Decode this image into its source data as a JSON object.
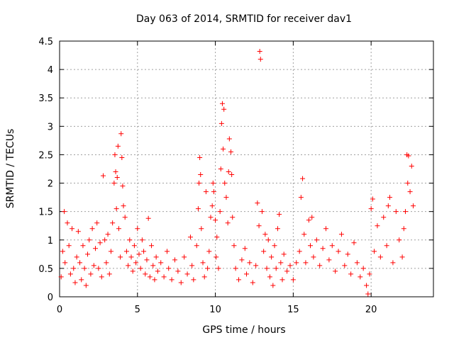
{
  "chart_data": {
    "type": "scatter",
    "title": "Day 063 of 2014, SRMTID for receiver dav1",
    "xlabel": "GPS time / hours",
    "ylabel": "SRMTID / TECUs",
    "xlim": [
      0,
      24
    ],
    "ylim": [
      0,
      4.5
    ],
    "x_ticks": [
      0,
      5,
      10,
      15,
      20
    ],
    "y_ticks": [
      0,
      0.5,
      1,
      1.5,
      2,
      2.5,
      3,
      3.5,
      4,
      4.5
    ],
    "x_tick_labels": [
      "0",
      "5",
      "10",
      "15",
      "20"
    ],
    "y_tick_labels": [
      "0",
      "0.5",
      "1",
      "1.5",
      "2",
      "2.5",
      "3",
      "3.5",
      "4",
      "4.5"
    ],
    "grid": true,
    "marker": "+",
    "color": "#ff0000",
    "series": [
      {
        "name": "SRMTID",
        "points": [
          [
            0.1,
            0.35
          ],
          [
            0.2,
            0.8
          ],
          [
            0.3,
            1.5
          ],
          [
            0.35,
            0.6
          ],
          [
            0.5,
            1.3
          ],
          [
            0.6,
            0.9
          ],
          [
            0.7,
            0.4
          ],
          [
            0.8,
            1.2
          ],
          [
            0.9,
            0.5
          ],
          [
            1.0,
            0.25
          ],
          [
            1.1,
            0.7
          ],
          [
            1.2,
            1.15
          ],
          [
            1.3,
            0.6
          ],
          [
            1.4,
            0.3
          ],
          [
            1.5,
            0.9
          ],
          [
            1.6,
            0.5
          ],
          [
            1.7,
            0.2
          ],
          [
            1.8,
            0.75
          ],
          [
            1.9,
            1.0
          ],
          [
            2.0,
            0.4
          ],
          [
            2.1,
            1.2
          ],
          [
            2.2,
            0.55
          ],
          [
            2.3,
            0.85
          ],
          [
            2.4,
            1.3
          ],
          [
            2.5,
            0.5
          ],
          [
            2.6,
            0.95
          ],
          [
            2.7,
            0.35
          ],
          [
            2.8,
            2.13
          ],
          [
            2.9,
            1.0
          ],
          [
            3.0,
            0.6
          ],
          [
            3.1,
            1.1
          ],
          [
            3.2,
            0.4
          ],
          [
            3.3,
            0.8
          ],
          [
            3.4,
            1.3
          ],
          [
            3.5,
            2.0
          ],
          [
            3.55,
            2.5
          ],
          [
            3.6,
            2.2
          ],
          [
            3.65,
            1.55
          ],
          [
            3.7,
            2.1
          ],
          [
            3.75,
            2.65
          ],
          [
            3.8,
            1.2
          ],
          [
            3.9,
            0.7
          ],
          [
            3.95,
            2.87
          ],
          [
            4.0,
            2.45
          ],
          [
            4.05,
            1.95
          ],
          [
            4.1,
            1.6
          ],
          [
            4.2,
            1.4
          ],
          [
            4.3,
            0.8
          ],
          [
            4.4,
            0.55
          ],
          [
            4.5,
            1.0
          ],
          [
            4.6,
            0.7
          ],
          [
            4.7,
            0.45
          ],
          [
            4.8,
            0.9
          ],
          [
            4.9,
            0.6
          ],
          [
            5.0,
            1.2
          ],
          [
            5.1,
            0.75
          ],
          [
            5.2,
            0.5
          ],
          [
            5.3,
            1.0
          ],
          [
            5.4,
            0.8
          ],
          [
            5.5,
            0.4
          ],
          [
            5.6,
            0.65
          ],
          [
            5.7,
            1.38
          ],
          [
            5.8,
            0.35
          ],
          [
            5.9,
            0.9
          ],
          [
            6.0,
            0.55
          ],
          [
            6.1,
            0.3
          ],
          [
            6.2,
            0.7
          ],
          [
            6.3,
            0.45
          ],
          [
            6.5,
            0.6
          ],
          [
            6.7,
            0.35
          ],
          [
            6.9,
            0.8
          ],
          [
            7.0,
            0.5
          ],
          [
            7.2,
            0.3
          ],
          [
            7.4,
            0.65
          ],
          [
            7.6,
            0.45
          ],
          [
            7.8,
            0.25
          ],
          [
            8.0,
            0.7
          ],
          [
            8.2,
            0.4
          ],
          [
            8.4,
            1.05
          ],
          [
            8.5,
            0.55
          ],
          [
            8.6,
            0.3
          ],
          [
            8.8,
            0.9
          ],
          [
            8.9,
            1.55
          ],
          [
            8.95,
            2.0
          ],
          [
            9.0,
            2.45
          ],
          [
            9.05,
            2.15
          ],
          [
            9.1,
            1.2
          ],
          [
            9.2,
            0.6
          ],
          [
            9.3,
            0.35
          ],
          [
            9.4,
            1.85
          ],
          [
            9.5,
            0.5
          ],
          [
            9.6,
            0.8
          ],
          [
            9.7,
            1.4
          ],
          [
            9.8,
            1.6
          ],
          [
            9.85,
            2.0
          ],
          [
            9.9,
            1.85
          ],
          [
            10.0,
            1.35
          ],
          [
            10.05,
            0.7
          ],
          [
            10.1,
            1.05
          ],
          [
            10.2,
            0.5
          ],
          [
            10.3,
            1.5
          ],
          [
            10.35,
            2.25
          ],
          [
            10.4,
            3.05
          ],
          [
            10.45,
            3.4
          ],
          [
            10.5,
            2.6
          ],
          [
            10.55,
            3.3
          ],
          [
            10.6,
            2.0
          ],
          [
            10.7,
            1.75
          ],
          [
            10.8,
            1.3
          ],
          [
            10.85,
            2.2
          ],
          [
            10.9,
            2.78
          ],
          [
            11.0,
            2.55
          ],
          [
            11.05,
            2.15
          ],
          [
            11.1,
            1.4
          ],
          [
            11.2,
            0.9
          ],
          [
            11.3,
            0.5
          ],
          [
            11.5,
            0.3
          ],
          [
            11.7,
            0.65
          ],
          [
            11.9,
            0.85
          ],
          [
            12.0,
            0.4
          ],
          [
            12.2,
            0.6
          ],
          [
            12.4,
            0.25
          ],
          [
            12.6,
            0.55
          ],
          [
            12.7,
            1.65
          ],
          [
            12.8,
            1.25
          ],
          [
            12.85,
            4.32
          ],
          [
            12.9,
            4.18
          ],
          [
            13.0,
            1.5
          ],
          [
            13.1,
            0.8
          ],
          [
            13.2,
            1.1
          ],
          [
            13.3,
            0.5
          ],
          [
            13.4,
            1.0
          ],
          [
            13.5,
            0.35
          ],
          [
            13.6,
            0.7
          ],
          [
            13.7,
            0.2
          ],
          [
            13.8,
            0.9
          ],
          [
            13.9,
            0.5
          ],
          [
            14.0,
            1.2
          ],
          [
            14.1,
            1.45
          ],
          [
            14.2,
            0.6
          ],
          [
            14.3,
            0.3
          ],
          [
            14.4,
            0.75
          ],
          [
            14.6,
            0.45
          ],
          [
            14.8,
            0.55
          ],
          [
            15.0,
            0.3
          ],
          [
            15.2,
            0.6
          ],
          [
            15.4,
            0.8
          ],
          [
            15.5,
            1.75
          ],
          [
            15.6,
            2.08
          ],
          [
            15.7,
            1.1
          ],
          [
            15.8,
            0.6
          ],
          [
            16.0,
            1.35
          ],
          [
            16.1,
            0.9
          ],
          [
            16.2,
            1.4
          ],
          [
            16.3,
            0.7
          ],
          [
            16.5,
            1.0
          ],
          [
            16.7,
            0.55
          ],
          [
            16.9,
            0.85
          ],
          [
            17.1,
            1.2
          ],
          [
            17.3,
            0.65
          ],
          [
            17.5,
            0.9
          ],
          [
            17.7,
            0.45
          ],
          [
            17.9,
            0.8
          ],
          [
            18.1,
            1.1
          ],
          [
            18.3,
            0.55
          ],
          [
            18.5,
            0.75
          ],
          [
            18.7,
            0.4
          ],
          [
            18.9,
            0.95
          ],
          [
            19.1,
            0.6
          ],
          [
            19.3,
            0.35
          ],
          [
            19.5,
            0.5
          ],
          [
            19.7,
            0.2
          ],
          [
            19.8,
            0.05
          ],
          [
            19.9,
            0.4
          ],
          [
            20.0,
            1.55
          ],
          [
            20.1,
            1.72
          ],
          [
            20.2,
            0.8
          ],
          [
            20.4,
            1.25
          ],
          [
            20.6,
            0.7
          ],
          [
            20.8,
            1.4
          ],
          [
            21.0,
            0.9
          ],
          [
            21.1,
            1.6
          ],
          [
            21.2,
            1.75
          ],
          [
            21.4,
            0.6
          ],
          [
            21.6,
            1.5
          ],
          [
            21.8,
            1.0
          ],
          [
            22.0,
            0.7
          ],
          [
            22.1,
            1.2
          ],
          [
            22.2,
            1.5
          ],
          [
            22.3,
            2.5
          ],
          [
            22.35,
            2.0
          ],
          [
            22.4,
            2.48
          ],
          [
            22.5,
            1.85
          ],
          [
            22.6,
            2.3
          ],
          [
            22.7,
            1.6
          ]
        ]
      }
    ]
  }
}
